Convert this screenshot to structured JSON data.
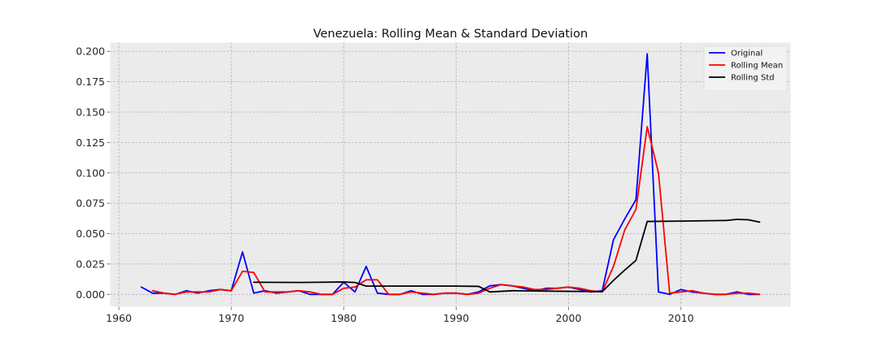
{
  "chart_data": {
    "type": "line",
    "title": "Venezuela: Rolling Mean & Standard Deviation",
    "xlabel": "",
    "ylabel": "",
    "xlim": [
      1959.2,
      2019.8
    ],
    "ylim": [
      -0.0105,
      0.2075
    ],
    "x_ticks": [
      1960,
      1970,
      1980,
      1990,
      2000,
      2010
    ],
    "x_tick_labels": [
      "1960",
      "1970",
      "1980",
      "1990",
      "2000",
      "2010"
    ],
    "y_ticks": [
      0.0,
      0.025,
      0.05,
      0.075,
      0.1,
      0.125,
      0.15,
      0.175,
      0.2
    ],
    "y_tick_labels": [
      "0.000",
      "0.025",
      "0.050",
      "0.075",
      "0.100",
      "0.125",
      "0.150",
      "0.175",
      "0.200"
    ],
    "grid": true,
    "legend_position": "top-right",
    "background_color": "#ebebeb",
    "series": [
      {
        "name": "Original",
        "color": "#0000ff",
        "points": [
          [
            1962,
            0.006
          ],
          [
            1963,
            0.001
          ],
          [
            1964,
            0.001
          ],
          [
            1965,
            0.0
          ],
          [
            1966,
            0.003
          ],
          [
            1967,
            0.001
          ],
          [
            1968,
            0.003
          ],
          [
            1969,
            0.004
          ],
          [
            1970,
            0.003
          ],
          [
            1971,
            0.035
          ],
          [
            1972,
            0.001
          ],
          [
            1973,
            0.003
          ],
          [
            1974,
            0.001
          ],
          [
            1975,
            0.002
          ],
          [
            1976,
            0.003
          ],
          [
            1977,
            0.0
          ],
          [
            1978,
            0.0
          ],
          [
            1979,
            0.0
          ],
          [
            1980,
            0.01
          ],
          [
            1981,
            0.002
          ],
          [
            1982,
            0.023
          ],
          [
            1983,
            0.001
          ],
          [
            1984,
            0.0
          ],
          [
            1985,
            0.0
          ],
          [
            1986,
            0.003
          ],
          [
            1987,
            0.0
          ],
          [
            1988,
            0.0
          ],
          [
            1989,
            0.001
          ],
          [
            1990,
            0.001
          ],
          [
            1991,
            0.0
          ],
          [
            1992,
            0.002
          ],
          [
            1993,
            0.007
          ],
          [
            1994,
            0.008
          ],
          [
            1995,
            0.007
          ],
          [
            1996,
            0.005
          ],
          [
            1997,
            0.003
          ],
          [
            1998,
            0.005
          ],
          [
            1999,
            0.005
          ],
          [
            2000,
            0.006
          ],
          [
            2001,
            0.004
          ],
          [
            2002,
            0.002
          ],
          [
            2003,
            0.003
          ],
          [
            2004,
            0.045
          ],
          [
            2005,
            0.062
          ],
          [
            2006,
            0.078
          ],
          [
            2007,
            0.198
          ],
          [
            2008,
            0.002
          ],
          [
            2009,
            0.0
          ],
          [
            2010,
            0.004
          ],
          [
            2011,
            0.002
          ],
          [
            2012,
            0.001
          ],
          [
            2013,
            0.0
          ],
          [
            2014,
            0.0
          ],
          [
            2015,
            0.002
          ],
          [
            2016,
            0.0
          ],
          [
            2017,
            0.0
          ]
        ]
      },
      {
        "name": "Rolling Mean",
        "color": "#ff0000",
        "points": [
          [
            1963,
            0.003
          ],
          [
            1964,
            0.001
          ],
          [
            1965,
            0.0
          ],
          [
            1966,
            0.002
          ],
          [
            1967,
            0.002
          ],
          [
            1968,
            0.002
          ],
          [
            1969,
            0.004
          ],
          [
            1970,
            0.003
          ],
          [
            1971,
            0.019
          ],
          [
            1972,
            0.018
          ],
          [
            1973,
            0.002
          ],
          [
            1974,
            0.002
          ],
          [
            1975,
            0.002
          ],
          [
            1976,
            0.003
          ],
          [
            1977,
            0.002
          ],
          [
            1978,
            0.0
          ],
          [
            1979,
            0.0
          ],
          [
            1980,
            0.005
          ],
          [
            1981,
            0.006
          ],
          [
            1982,
            0.012
          ],
          [
            1983,
            0.012
          ],
          [
            1984,
            0.0
          ],
          [
            1985,
            0.0
          ],
          [
            1986,
            0.002
          ],
          [
            1987,
            0.001
          ],
          [
            1988,
            0.0
          ],
          [
            1989,
            0.001
          ],
          [
            1990,
            0.001
          ],
          [
            1991,
            0.0
          ],
          [
            1992,
            0.001
          ],
          [
            1993,
            0.005
          ],
          [
            1994,
            0.008
          ],
          [
            1995,
            0.007
          ],
          [
            1996,
            0.006
          ],
          [
            1997,
            0.004
          ],
          [
            1998,
            0.004
          ],
          [
            1999,
            0.005
          ],
          [
            2000,
            0.006
          ],
          [
            2001,
            0.005
          ],
          [
            2002,
            0.003
          ],
          [
            2003,
            0.002
          ],
          [
            2004,
            0.023
          ],
          [
            2005,
            0.053
          ],
          [
            2006,
            0.07
          ],
          [
            2007,
            0.138
          ],
          [
            2008,
            0.1
          ],
          [
            2009,
            0.001
          ],
          [
            2010,
            0.002
          ],
          [
            2011,
            0.003
          ],
          [
            2012,
            0.001
          ],
          [
            2013,
            0.0
          ],
          [
            2014,
            0.0
          ],
          [
            2015,
            0.001
          ],
          [
            2016,
            0.001
          ],
          [
            2017,
            0.0
          ]
        ]
      },
      {
        "name": "Rolling Std",
        "color": "#000000",
        "points": [
          [
            1972,
            0.01
          ],
          [
            1976,
            0.0098
          ],
          [
            1980,
            0.0102
          ],
          [
            1981,
            0.0098
          ],
          [
            1982,
            0.0068
          ],
          [
            1985,
            0.0068
          ],
          [
            1990,
            0.0068
          ],
          [
            1992,
            0.0066
          ],
          [
            1993,
            0.002
          ],
          [
            1995,
            0.003
          ],
          [
            2000,
            0.0025
          ],
          [
            2003,
            0.0022
          ],
          [
            2004,
            0.0115
          ],
          [
            2005,
            0.02
          ],
          [
            2006,
            0.028
          ],
          [
            2007,
            0.06
          ],
          [
            2010,
            0.0603
          ],
          [
            2014,
            0.0608
          ],
          [
            2015,
            0.0617
          ],
          [
            2016,
            0.0614
          ],
          [
            2017,
            0.0595
          ]
        ]
      }
    ]
  }
}
